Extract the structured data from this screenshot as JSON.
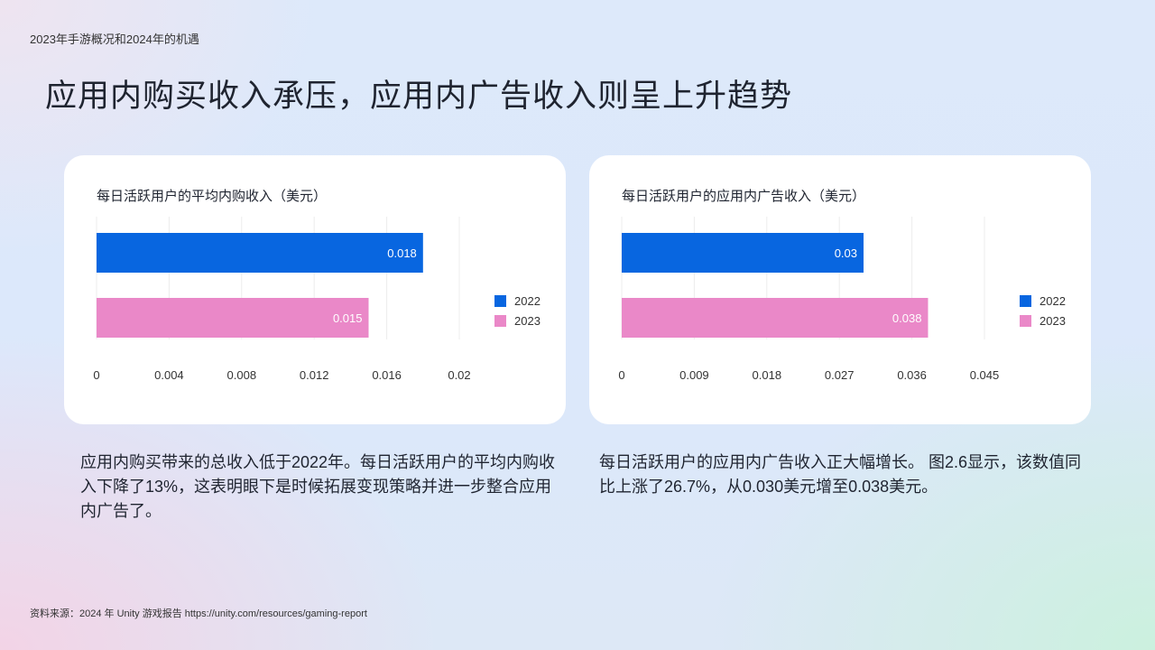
{
  "header": {
    "eyebrow": "2023年手游概况和2024年的机遇",
    "title": "应用内购买收入承压，应用内广告收入则呈上升趋势"
  },
  "chart_data": [
    {
      "type": "bar",
      "orientation": "horizontal",
      "title": "每日活跃用户的平均内购收入（美元）",
      "series": [
        {
          "name": "2022",
          "value": 0.018,
          "label": "0.018"
        },
        {
          "name": "2023",
          "value": 0.015,
          "label": "0.015"
        }
      ],
      "xlim": [
        0,
        0.02
      ],
      "ticks": [
        0,
        0.004,
        0.008,
        0.012,
        0.016,
        0.02
      ],
      "tick_labels": [
        "0",
        "0.004",
        "0.008",
        "0.012",
        "0.016",
        "0.02"
      ],
      "legend_position": "right",
      "grid": true
    },
    {
      "type": "bar",
      "orientation": "horizontal",
      "title": "每日活跃用户的应用内广告收入（美元）",
      "series": [
        {
          "name": "2022",
          "value": 0.03,
          "label": "0.03"
        },
        {
          "name": "2023",
          "value": 0.038,
          "label": "0.038"
        }
      ],
      "xlim": [
        0,
        0.045
      ],
      "ticks": [
        0,
        0.009,
        0.018,
        0.027,
        0.036,
        0.045
      ],
      "tick_labels": [
        "0",
        "0.009",
        "0.018",
        "0.027",
        "0.036",
        "0.045"
      ],
      "legend_position": "right",
      "grid": true
    }
  ],
  "colors": {
    "series_2022": "#0866e0",
    "series_2023": "#ea88c8"
  },
  "descriptions": {
    "left": "应用内购买带来的总收入低于2022年。每日活跃用户的平均内购收入下降了13%，这表明眼下是时候拓展变现策略并进一步整合应用内广告了。",
    "right": "每日活跃用户的应用内广告收入正大幅增长。 图2.6显示，该数值同比上涨了26.7%，从0.030美元增至0.038美元。"
  },
  "footer": {
    "source": "资料来源：2024 年 Unity 游戏报告 https://unity.com/resources/gaming-report"
  }
}
